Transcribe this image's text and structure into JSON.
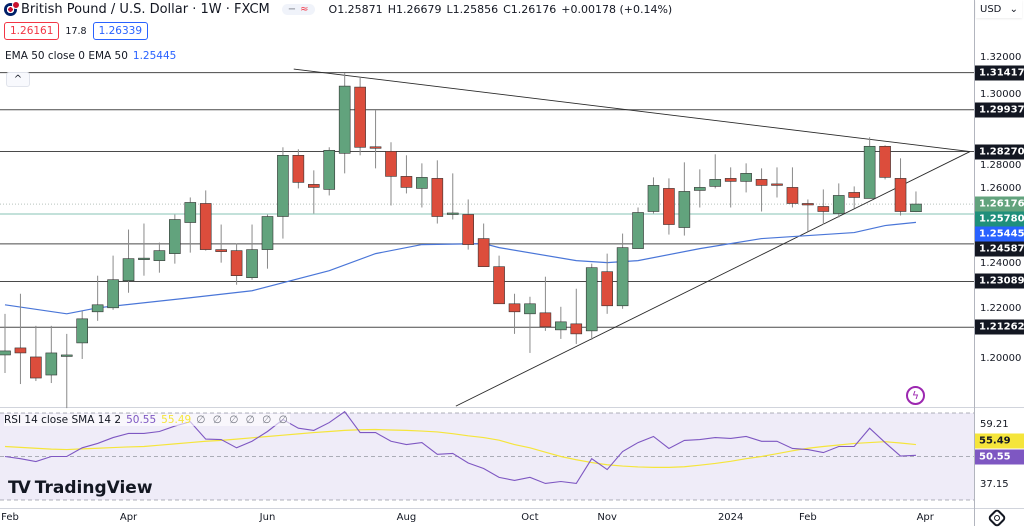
{
  "header": {
    "symbol_title": "British Pound / U.S. Dollar · 1W · FXCM",
    "flag_icon": "uk-flag-icon",
    "ohlc": {
      "open": "O1.25871",
      "high": "H1.26679",
      "low": "L1.25856",
      "close": "C1.26176",
      "change": "+0.00178 (+0.14%)"
    },
    "pill": {
      "minus": "−",
      "wave": "≈"
    },
    "sell_price": "1.26161",
    "spread": "17.8",
    "buy_price": "1.26339",
    "currency": "USD",
    "currency_chevron": "⌄",
    "collapse_symbol": "^"
  },
  "ema": {
    "label": "EMA 50 close 0 EMA 50",
    "value": "1.25445"
  },
  "rsi": {
    "label": "RSI 14 close SMA 14 2",
    "rsi_value": "50.55",
    "sma_value": "55.49",
    "empty_values": "∅ ∅ ∅ ∅ ∅ ∅",
    "ticks": [
      "59.21",
      "37.15"
    ]
  },
  "price_axis": {
    "ticks": [
      "1.32000",
      "1.30000",
      "1.28000",
      "1.26000",
      "1.24000",
      "1.22000",
      "1.20000"
    ]
  },
  "time_axis": {
    "labels": [
      "Feb",
      "Apr",
      "Jun",
      "Aug",
      "Oct",
      "Nov",
      "2024",
      "Feb",
      "Apr"
    ]
  },
  "logo": "TradingView",
  "colors": {
    "up": "#62a37d",
    "down": "#dc4d3c",
    "ema": "#4a76d8",
    "rsi": "#7e57c2",
    "rsi_sma": "#f5e53b",
    "level": "#131722",
    "last_price": "#62a37d",
    "support_teal": "#1f8f7b",
    "ema_badge": "#2962ff"
  },
  "chart_data": {
    "type": "candlestick",
    "interval": "1W",
    "ylim": [
      1.18,
      1.33
    ],
    "candles": [
      [
        1.2016,
        1.218,
        1.1944,
        1.2032
      ],
      [
        1.2044,
        1.226,
        1.19,
        1.2024
      ],
      [
        1.2008,
        1.2132,
        1.1912,
        1.1924
      ],
      [
        1.1936,
        1.2132,
        1.1904,
        1.2024
      ],
      [
        1.2012,
        1.21,
        1.1804,
        1.2016
      ],
      [
        1.2064,
        1.2192,
        1.2,
        1.216
      ],
      [
        1.2188,
        1.2332,
        1.2152,
        1.2216
      ],
      [
        1.2204,
        1.2412,
        1.2196,
        1.2316
      ],
      [
        1.2312,
        1.2516,
        1.2264,
        1.24
      ],
      [
        1.2398,
        1.254,
        1.2332,
        1.2402
      ],
      [
        1.2392,
        1.2464,
        1.2344,
        1.2432
      ],
      [
        1.242,
        1.2576,
        1.238,
        1.2556
      ],
      [
        1.2544,
        1.2644,
        1.2424,
        1.2624
      ],
      [
        1.262,
        1.2672,
        1.2432,
        1.2436
      ],
      [
        1.2436,
        1.2536,
        1.2384,
        1.2428
      ],
      [
        1.2432,
        1.246,
        1.2296,
        1.2332
      ],
      [
        1.2324,
        1.2536,
        1.2316,
        1.2436
      ],
      [
        1.2436,
        1.2576,
        1.236,
        1.2568
      ],
      [
        1.2568,
        1.2844,
        1.248,
        1.2812
      ],
      [
        1.2812,
        1.2836,
        1.268,
        1.2704
      ],
      [
        1.2696,
        1.2752,
        1.258,
        1.2684
      ],
      [
        1.2676,
        1.2844,
        1.2652,
        1.2832
      ],
      [
        1.282,
        1.314,
        1.274,
        1.3088
      ],
      [
        1.3084,
        1.3124,
        1.2812,
        1.2844
      ],
      [
        1.2846,
        1.2992,
        1.276,
        1.2842
      ],
      [
        1.2828,
        1.2864,
        1.2612,
        1.2728
      ],
      [
        1.2728,
        1.2812,
        1.266,
        1.2684
      ],
      [
        1.268,
        1.278,
        1.2604,
        1.2724
      ],
      [
        1.272,
        1.2792,
        1.254,
        1.2568
      ],
      [
        1.2578,
        1.274,
        1.2556,
        1.2582
      ],
      [
        1.2576,
        1.2636,
        1.2436,
        1.2456
      ],
      [
        1.248,
        1.254,
        1.2368,
        1.2368
      ],
      [
        1.2368,
        1.2412,
        1.222,
        1.222
      ],
      [
        1.222,
        1.226,
        1.21,
        1.2188
      ],
      [
        1.218,
        1.2248,
        1.2024,
        1.222
      ],
      [
        1.2184,
        1.2328,
        1.2112,
        1.2128
      ],
      [
        1.2116,
        1.2208,
        1.208,
        1.2148
      ],
      [
        1.214,
        1.228,
        1.206,
        1.21
      ],
      [
        1.2112,
        1.238,
        1.2076,
        1.2364
      ],
      [
        1.2348,
        1.242,
        1.218,
        1.2212
      ],
      [
        1.2212,
        1.25,
        1.22,
        1.2444
      ],
      [
        1.244,
        1.2604,
        1.244,
        1.2584
      ],
      [
        1.2588,
        1.2724,
        1.258,
        1.2692
      ],
      [
        1.268,
        1.272,
        1.2496,
        1.2536
      ],
      [
        1.2524,
        1.2784,
        1.2492,
        1.2668
      ],
      [
        1.2672,
        1.2756,
        1.2604,
        1.2684
      ],
      [
        1.2688,
        1.2816,
        1.268,
        1.2716
      ],
      [
        1.272,
        1.2764,
        1.2604,
        1.2708
      ],
      [
        1.2708,
        1.278,
        1.2664,
        1.274
      ],
      [
        1.2716,
        1.276,
        1.2588,
        1.2692
      ],
      [
        1.2698,
        1.2764,
        1.2644,
        1.2696
      ],
      [
        1.2684,
        1.2764,
        1.2604,
        1.262
      ],
      [
        1.262,
        1.2636,
        1.2508,
        1.2618
      ],
      [
        1.2608,
        1.2676,
        1.2536,
        1.2588
      ],
      [
        1.258,
        1.27,
        1.2564,
        1.2652
      ],
      [
        1.2664,
        1.2688,
        1.26,
        1.2644
      ],
      [
        1.264,
        1.2884,
        1.264,
        1.2848
      ],
      [
        1.2848,
        1.2852,
        1.2716,
        1.2724
      ],
      [
        1.272,
        1.28,
        1.2572,
        1.2588
      ],
      [
        1.25871,
        1.26679,
        1.25856,
        1.26176
      ]
    ],
    "ema50": [
      [
        1,
        1.2216
      ],
      [
        5,
        1.218
      ],
      [
        7,
        1.2204
      ],
      [
        13,
        1.2244
      ],
      [
        17,
        1.2272
      ],
      [
        22,
        1.2352
      ],
      [
        25,
        1.242
      ],
      [
        28,
        1.2456
      ],
      [
        32,
        1.246
      ],
      [
        33,
        1.2444
      ],
      [
        38,
        1.2392
      ],
      [
        40,
        1.2384
      ],
      [
        42,
        1.2392
      ],
      [
        46,
        1.244
      ],
      [
        50,
        1.248
      ],
      [
        56,
        1.2504
      ],
      [
        58,
        1.2532
      ],
      [
        60,
        1.25445
      ]
    ],
    "horizontal_levels": [
      1.31417,
      1.29937,
      1.2827,
      1.24587,
      1.23089,
      1.21262
    ],
    "support_line": 1.2578,
    "last_price": 1.26176,
    "trendlines": [
      {
        "from": {
          "bar": 19.7,
          "price": 1.3156
        },
        "to": {
          "bar": 63.5,
          "price": 1.2827
        }
      },
      {
        "from": {
          "bar": 30.2,
          "price": 1.1812
        },
        "to": {
          "bar": 63.5,
          "price": 1.2827
        }
      }
    ],
    "level_labels": [
      "1.31417",
      "1.29937",
      "1.28270",
      "1.26176",
      "1.25780",
      "1.25445",
      "1.24587",
      "1.23089",
      "1.21262"
    ],
    "rsi_values": [
      50,
      49,
      47.7,
      50,
      50,
      54,
      56,
      58.7,
      60.6,
      60.6,
      61.5,
      64,
      66,
      58,
      57.8,
      54,
      57,
      61.5,
      67,
      63,
      62,
      65.6,
      70.6,
      61,
      61,
      57,
      55.5,
      56.4,
      51,
      51.4,
      47,
      44.5,
      40.4,
      39,
      40.4,
      37.6,
      38.5,
      37.6,
      49,
      44,
      52.3,
      56.4,
      59.2,
      53.7,
      57.4,
      57.8,
      58.7,
      58.3,
      59.2,
      57,
      57,
      53.7,
      53.2,
      51.8,
      54.6,
      54.6,
      63,
      56.4,
      50.2,
      50.55
    ],
    "rsi_sma_values": [
      54.6,
      54.2,
      53.8,
      53.4,
      53.2,
      53.5,
      53.8,
      54.1,
      54.4,
      54.6,
      55.2,
      55.8,
      56.4,
      57,
      57.4,
      58,
      58.6,
      59.2,
      59.8,
      60.4,
      61,
      61.5,
      62,
      62.3,
      62.4,
      62.2,
      62,
      61.7,
      61.3,
      60.5,
      59.5,
      58.7,
      57.5,
      55.5,
      54,
      52,
      50,
      48.5,
      47.2,
      46.2,
      45.6,
      45.2,
      45,
      45,
      45.3,
      46,
      46.8,
      47.8,
      49,
      50,
      51.3,
      52.6,
      53.8,
      54.6,
      55.3,
      56,
      56.4,
      56.8,
      56.2,
      55.49
    ],
    "rsi_levels": [
      70,
      50,
      30
    ]
  }
}
